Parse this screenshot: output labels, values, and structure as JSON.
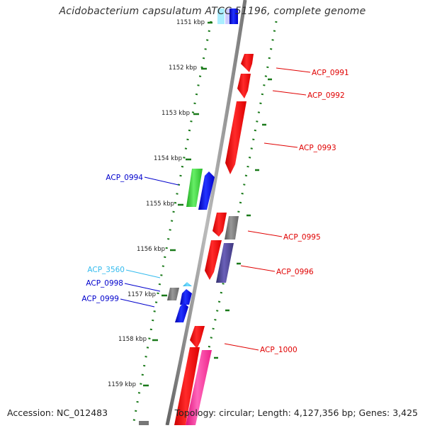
{
  "title": "Acidobacterium capsulatum ATCC 51196, complete genome",
  "footer": {
    "accession": "Accession: NC_012483",
    "summary": "Topology: circular; Length: 4,127,356 bp; Genes: 3,425"
  },
  "ticks": [
    {
      "label": "1151 kbp"
    },
    {
      "label": "1152 kbp"
    },
    {
      "label": "1153 kbp"
    },
    {
      "label": "1154 kbp"
    },
    {
      "label": "1155 kbp"
    },
    {
      "label": "1156 kbp"
    },
    {
      "label": "1157 kbp"
    },
    {
      "label": "1158 kbp"
    },
    {
      "label": "1159 kbp"
    }
  ],
  "gene_labels": [
    {
      "text": "ACP_0991",
      "color": "#e00000"
    },
    {
      "text": "ACP_0992",
      "color": "#e00000"
    },
    {
      "text": "ACP_0993",
      "color": "#e00000"
    },
    {
      "text": "ACP_0994",
      "color": "#0000cc"
    },
    {
      "text": "ACP_0995",
      "color": "#e00000"
    },
    {
      "text": "ACP_0996",
      "color": "#e00000"
    },
    {
      "text": "ACP_3560",
      "color": "#33bbee"
    },
    {
      "text": "ACP_0998",
      "color": "#0000cc"
    },
    {
      "text": "ACP_0999",
      "color": "#0000cc"
    },
    {
      "text": "ACP_1000",
      "color": "#e00000"
    }
  ],
  "colors": {
    "backbone": "#8c8c8c",
    "dotted_guides": "#1a7a1a",
    "red": "#ff0000",
    "blue": "#0000ee",
    "green": "#33cc33",
    "gray": "#777777",
    "purple": "#4a3f8f",
    "magenta": "#ff3399",
    "cyan": "#33ccee"
  }
}
